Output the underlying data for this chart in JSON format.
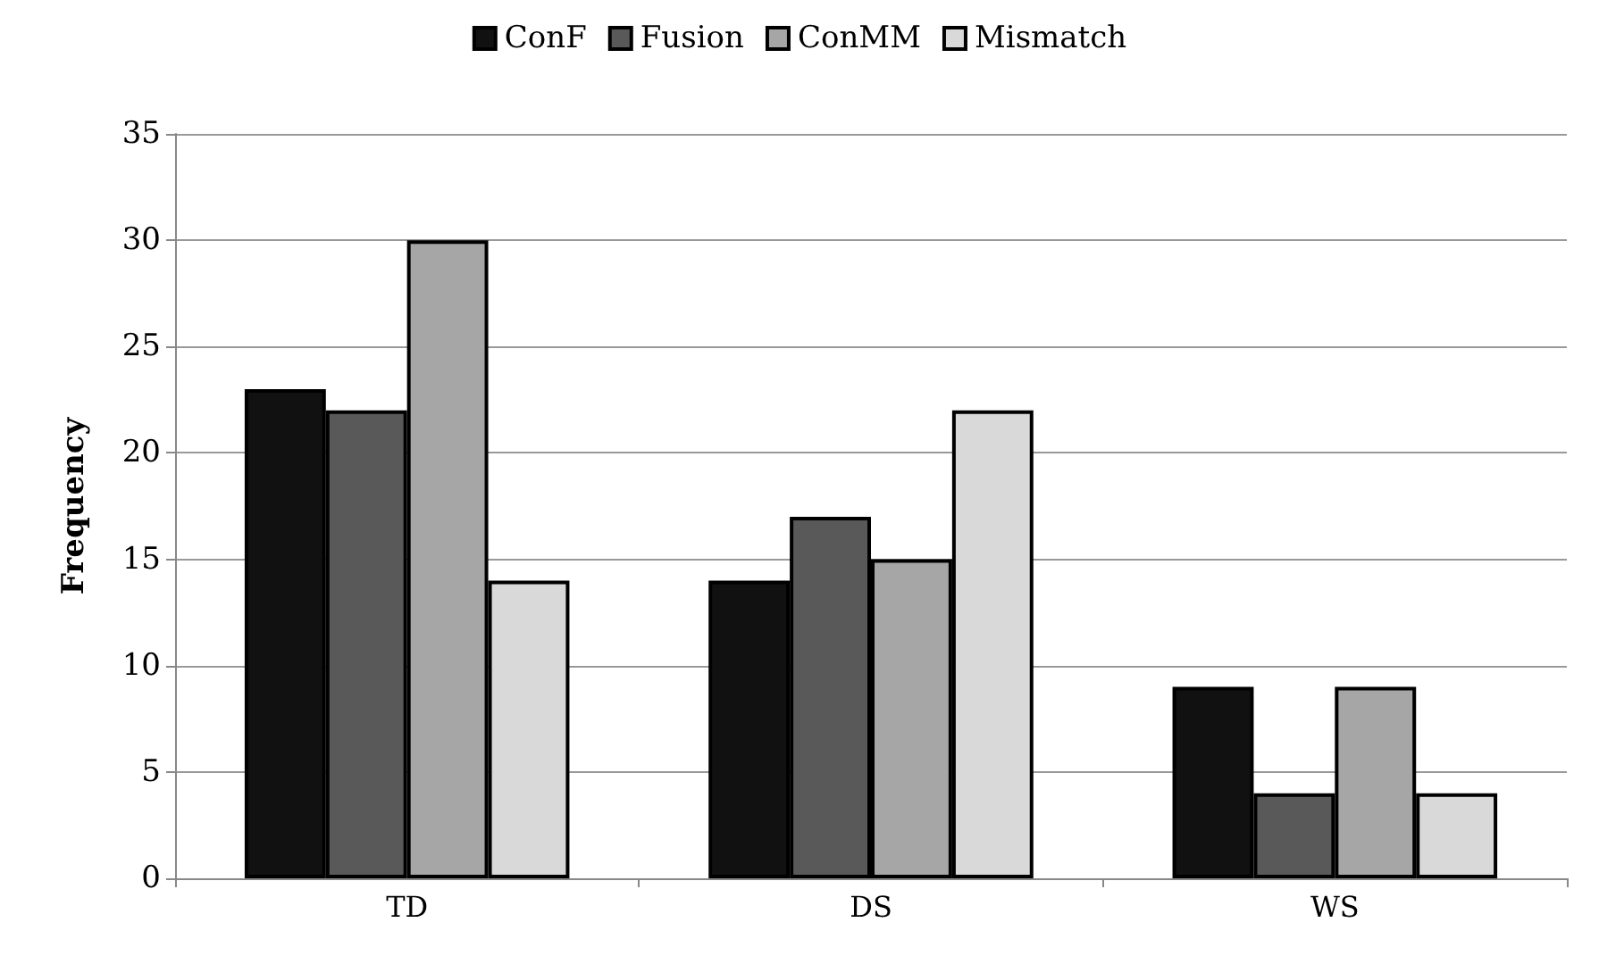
{
  "chart_data": {
    "type": "bar",
    "ylabel": "Frequency",
    "categories": [
      "TD",
      "DS",
      "WS"
    ],
    "series": [
      {
        "name": "ConF",
        "color": "#111111",
        "values": [
          23,
          14,
          9
        ]
      },
      {
        "name": "Fusion",
        "color": "#595959",
        "values": [
          22,
          17,
          4
        ]
      },
      {
        "name": "ConMM",
        "color": "#a6a6a6",
        "values": [
          30,
          15,
          9
        ]
      },
      {
        "name": "Mismatch",
        "color": "#d9d9d9",
        "values": [
          14,
          22,
          4
        ]
      }
    ],
    "ylim": [
      0,
      35
    ],
    "yticks": [
      0,
      5,
      10,
      15,
      20,
      25,
      30,
      35
    ],
    "grid": "y",
    "legend": "top"
  }
}
